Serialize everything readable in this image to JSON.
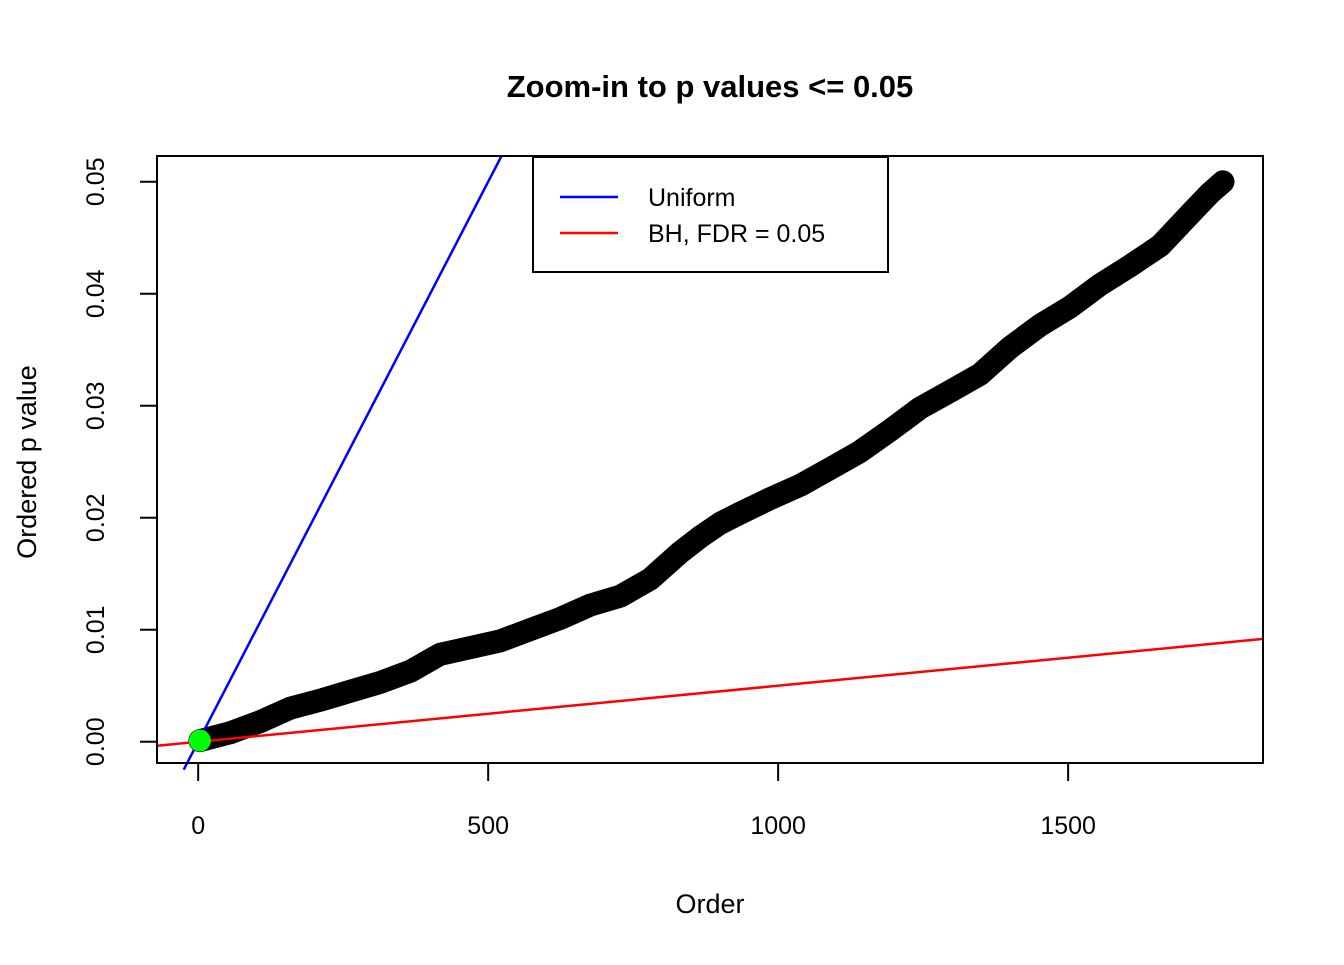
{
  "figure": {
    "background": "#ffffff",
    "frame_color": "#000000"
  },
  "chart_data": {
    "type": "scatter",
    "title": "Zoom-in to p values <= 0.05",
    "xlabel": "Order",
    "ylabel": "Ordered p value",
    "grid": false,
    "frame": true,
    "xlim": [
      -71,
      1836
    ],
    "ylim": [
      -0.0019,
      0.0523
    ],
    "x_ticks": [
      {
        "value": 0,
        "label": "0"
      },
      {
        "value": 500,
        "label": "500"
      },
      {
        "value": 1000,
        "label": "1000"
      },
      {
        "value": 1500,
        "label": "1500"
      }
    ],
    "y_ticks": [
      {
        "value": 0.0,
        "label": "0.00"
      },
      {
        "value": 0.01,
        "label": "0.01"
      },
      {
        "value": 0.02,
        "label": "0.02"
      },
      {
        "value": 0.03,
        "label": "0.03"
      },
      {
        "value": 0.04,
        "label": "0.04"
      },
      {
        "value": 0.05,
        "label": "0.05"
      }
    ],
    "series": [
      {
        "name": "ordered-p-curve",
        "type": "thick-dot-curve",
        "color": "#000000",
        "points": [
          [
            3,
            0.0001
          ],
          [
            55,
            0.0008
          ],
          [
            107,
            0.0018
          ],
          [
            159,
            0.003
          ],
          [
            210,
            0.0037
          ],
          [
            262,
            0.0045
          ],
          [
            314,
            0.0053
          ],
          [
            366,
            0.0063
          ],
          [
            417,
            0.0078
          ],
          [
            469,
            0.0084
          ],
          [
            521,
            0.009
          ],
          [
            572,
            0.01
          ],
          [
            624,
            0.011
          ],
          [
            676,
            0.0122
          ],
          [
            728,
            0.013
          ],
          [
            779,
            0.0145
          ],
          [
            831,
            0.0169
          ],
          [
            866,
            0.0183
          ],
          [
            900,
            0.0195
          ],
          [
            934,
            0.0204
          ],
          [
            986,
            0.0217
          ],
          [
            1038,
            0.0229
          ],
          [
            1090,
            0.0244
          ],
          [
            1141,
            0.0259
          ],
          [
            1193,
            0.0278
          ],
          [
            1245,
            0.0298
          ],
          [
            1297,
            0.0313
          ],
          [
            1348,
            0.0328
          ],
          [
            1400,
            0.0352
          ],
          [
            1452,
            0.0372
          ],
          [
            1503,
            0.0388
          ],
          [
            1555,
            0.0408
          ],
          [
            1607,
            0.0425
          ],
          [
            1659,
            0.0443
          ],
          [
            1710,
            0.0471
          ],
          [
            1745,
            0.049
          ],
          [
            1767,
            0.05
          ]
        ]
      },
      {
        "name": "uniform-line",
        "label": "Uniform",
        "type": "line",
        "color": "#0000FF",
        "slope_p_per_order": 0.0001,
        "points": [
          [
            -25,
            -0.0025
          ],
          [
            523,
            0.0523
          ]
        ]
      },
      {
        "name": "bh-line",
        "label": "BH, FDR = 0.05",
        "type": "line",
        "color": "#FF0000",
        "slope_p_per_order": 5e-06,
        "points": [
          [
            -71,
            -0.000355
          ],
          [
            1836,
            0.00918
          ]
        ]
      },
      {
        "name": "bh-threshold-point",
        "type": "point",
        "color": "#00FF00",
        "points": [
          [
            3,
            0.0001
          ]
        ]
      }
    ],
    "legend": {
      "position": "top-center",
      "entries": [
        {
          "label": "Uniform",
          "color": "#0000FF"
        },
        {
          "label": "BH, FDR = 0.05",
          "color": "#FF0000"
        }
      ]
    }
  }
}
